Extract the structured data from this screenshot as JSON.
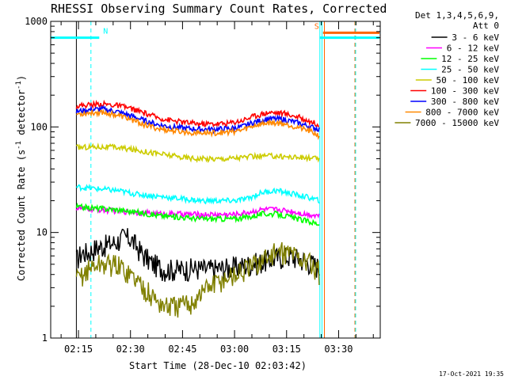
{
  "chart_data": {
    "type": "line",
    "title": "RHESSI Observing Summary Count Rates, Corrected",
    "xlabel": "Start Time (28-Dec-10 02:03:42)",
    "ylabel": "Corrected Count Rate (s",
    "ylabel_sup": "-1",
    "ylabel_mid": " detector",
    "ylabel_sup2": "-1",
    "ylabel_end": ")",
    "yscale": "log",
    "ylim": [
      1,
      1000
    ],
    "xlim_min": [
      7,
      43
    ],
    "y_ticks": [
      {
        "value": 1,
        "label": "1"
      },
      {
        "value": 10,
        "label": "10"
      },
      {
        "value": 100,
        "label": "100"
      },
      {
        "value": 1000,
        "label": "1000"
      }
    ],
    "x_ticks": [
      {
        "value": 15,
        "label": "02:15"
      },
      {
        "value": 30,
        "label": "02:30"
      },
      {
        "value": 45,
        "label": "02:45"
      },
      {
        "value": 60,
        "label": "03:00"
      },
      {
        "value": 75,
        "label": "03:15"
      },
      {
        "value": 90,
        "label": "03:30"
      }
    ],
    "legend_header": [
      "Det 1,3,4,5,6,9,",
      "Att 0"
    ],
    "series": [
      {
        "name": "3 - 6 keV",
        "color": "#000000",
        "x": [
          14.4,
          16,
          18,
          20,
          22,
          24,
          26,
          28,
          30,
          32,
          34,
          36,
          38,
          40,
          44,
          48,
          52,
          56,
          60,
          64,
          68,
          72,
          76,
          80,
          84,
          84.6
        ],
        "y": [
          5.5,
          6.5,
          6.5,
          7.2,
          7.5,
          7.8,
          8.2,
          9.0,
          8.8,
          7.2,
          6.0,
          5.2,
          4.8,
          4.5,
          4.5,
          4.6,
          4.5,
          4.6,
          4.7,
          5.0,
          5.3,
          5.8,
          6.0,
          5.5,
          4.8,
          4.5
        ]
      },
      {
        "name": "6 - 12 keV",
        "color": "#ff00ff",
        "x": [
          14.4,
          20,
          26,
          32,
          38,
          44,
          50,
          56,
          60,
          64,
          68,
          72,
          76,
          80,
          84.6
        ],
        "y": [
          17,
          16.5,
          16,
          15.5,
          15,
          15,
          14.8,
          14.8,
          14.8,
          15.5,
          16.5,
          16.5,
          16,
          15,
          14.5
        ]
      },
      {
        "name": "12 - 25 keV",
        "color": "#00ff00",
        "x": [
          14.4,
          20,
          26,
          32,
          38,
          44,
          50,
          56,
          60,
          64,
          68,
          72,
          76,
          80,
          84.6
        ],
        "y": [
          17.5,
          17,
          16.5,
          15.5,
          14.5,
          14,
          13.5,
          13.5,
          13.5,
          14,
          15,
          15,
          14,
          13,
          12
        ]
      },
      {
        "name": "25 - 50 keV",
        "color": "#00ffff",
        "x": [
          14.4,
          20,
          26,
          32,
          38,
          44,
          50,
          56,
          60,
          64,
          68,
          72,
          76,
          80,
          84.6
        ],
        "y": [
          27,
          26,
          25,
          23,
          22,
          21,
          20,
          20,
          20,
          21,
          24,
          25,
          23.5,
          22,
          20
        ]
      },
      {
        "name": "50 - 100 keV",
        "color": "#cccc00",
        "x": [
          14.4,
          20,
          26,
          32,
          38,
          44,
          50,
          56,
          60,
          64,
          68,
          72,
          76,
          80,
          84.6
        ],
        "y": [
          64,
          65,
          64,
          60,
          56,
          52,
          50,
          50,
          51,
          52,
          53,
          53,
          52,
          51,
          50
        ]
      },
      {
        "name": "100 - 300 keV",
        "color": "#ff0000",
        "x": [
          14.4,
          18,
          22,
          26,
          30,
          34,
          38,
          42,
          46,
          50,
          54,
          58,
          62,
          66,
          70,
          74,
          78,
          82,
          84.6
        ],
        "y": [
          158,
          162,
          165,
          160,
          150,
          135,
          122,
          115,
          110,
          107,
          107,
          108,
          115,
          128,
          138,
          135,
          125,
          112,
          105
        ]
      },
      {
        "name": "300 - 800 keV",
        "color": "#0000ff",
        "x": [
          14.4,
          18,
          22,
          26,
          30,
          34,
          38,
          42,
          46,
          50,
          54,
          58,
          62,
          66,
          70,
          74,
          78,
          82,
          84.6
        ],
        "y": [
          140,
          145,
          148,
          140,
          128,
          115,
          105,
          100,
          97,
          95,
          95,
          96,
          100,
          112,
          120,
          118,
          110,
          100,
          95
        ]
      },
      {
        "name": "800 - 7000 keV",
        "color": "#ff8800",
        "x": [
          14.4,
          18,
          22,
          26,
          30,
          34,
          38,
          42,
          46,
          50,
          54,
          58,
          62,
          66,
          70,
          74,
          78,
          82,
          84.6
        ],
        "y": [
          132,
          136,
          138,
          130,
          118,
          105,
          96,
          92,
          89,
          88,
          88,
          89,
          93,
          104,
          110,
          108,
          100,
          90,
          82
        ]
      },
      {
        "name": "7000 - 15000 keV",
        "color": "#808000",
        "x": [
          14.4,
          16,
          18,
          20,
          22,
          24,
          26,
          28,
          30,
          32,
          34,
          36,
          38,
          40,
          44,
          48,
          52,
          56,
          60,
          64,
          68,
          72,
          76,
          80,
          84,
          84.6
        ],
        "y": [
          3.5,
          4.0,
          4.5,
          5.0,
          5.0,
          5.0,
          5.0,
          4.5,
          4.0,
          3.5,
          3.0,
          2.5,
          2.2,
          2.0,
          2.0,
          2.2,
          3.0,
          3.5,
          4.0,
          4.5,
          5.5,
          6.5,
          6.5,
          5.5,
          4.5,
          4.0
        ]
      }
    ],
    "bars": [
      {
        "label": "N",
        "color": "#00ffff",
        "x0": 7,
        "x1": 21,
        "y": 700
      },
      {
        "label": "S",
        "color": "#ff6600",
        "x0": 85.5,
        "x1": 102,
        "y": 780
      },
      {
        "color": "#00ffff",
        "x0": 84.5,
        "x1": 102,
        "y": 700
      }
    ],
    "verticals": [
      {
        "x": 7.0,
        "color": "#00ffff",
        "dash": false
      },
      {
        "x": 14.4,
        "color": "#000000",
        "dash": false
      },
      {
        "x": 18.6,
        "color": "#00ffff",
        "dash": true
      },
      {
        "x": 84.6,
        "color": "#00ffff",
        "dash": false
      },
      {
        "x": 85.2,
        "color": "#00ffff",
        "dash": false
      },
      {
        "x": 85.9,
        "color": "#ff6600",
        "dash": false
      },
      {
        "x": 94.7,
        "color": "#ff6600",
        "dash": true
      },
      {
        "x": 94.9,
        "color": "#00ffff",
        "dash": true
      }
    ],
    "timestamp": "17-Oct-2021 19:35"
  }
}
